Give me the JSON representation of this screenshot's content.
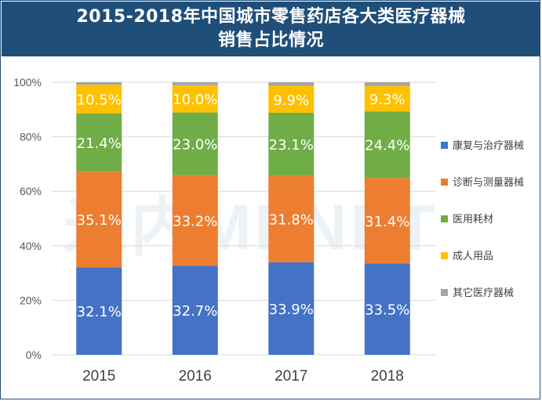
{
  "title_line1": "2015-2018年中国城市零售药店各大类医疗器械",
  "title_line2": "销售占比情况",
  "watermark": "米内MENET",
  "colors": {
    "title_bg": "#1f4e79",
    "series": [
      "#4472c4",
      "#ed7d31",
      "#70ad47",
      "#ffc000",
      "#a5a5a5"
    ]
  },
  "chart_data": {
    "type": "bar",
    "stacked": true,
    "categories": [
      "2015",
      "2016",
      "2017",
      "2018"
    ],
    "series": [
      {
        "name": "康复与治疗器械",
        "values": [
          32.1,
          32.7,
          33.9,
          33.5
        ]
      },
      {
        "name": "诊断与测量器械",
        "values": [
          35.1,
          33.2,
          31.8,
          31.4
        ]
      },
      {
        "name": "医用耗材",
        "values": [
          21.4,
          23.0,
          23.1,
          24.4
        ]
      },
      {
        "name": "成人用品",
        "values": [
          10.5,
          10.0,
          9.9,
          9.3
        ]
      },
      {
        "name": "其它医疗器械",
        "values": [
          0.9,
          1.1,
          1.3,
          1.4
        ]
      }
    ],
    "data_labels": [
      [
        "32.1%",
        "32.7%",
        "33.9%",
        "33.5%"
      ],
      [
        "35.1%",
        "33.2%",
        "31.8%",
        "31.4%"
      ],
      [
        "21.4%",
        "23.0%",
        "23.1%",
        "24.4%"
      ],
      [
        "10.5%",
        "10.0%",
        "9.9%",
        "9.3%"
      ],
      [
        "",
        "",
        "",
        ""
      ]
    ],
    "y_ticks": [
      "0%",
      "20%",
      "40%",
      "60%",
      "80%",
      "100%"
    ],
    "ylim": [
      0,
      100
    ],
    "grid": true,
    "legend_position": "right"
  }
}
